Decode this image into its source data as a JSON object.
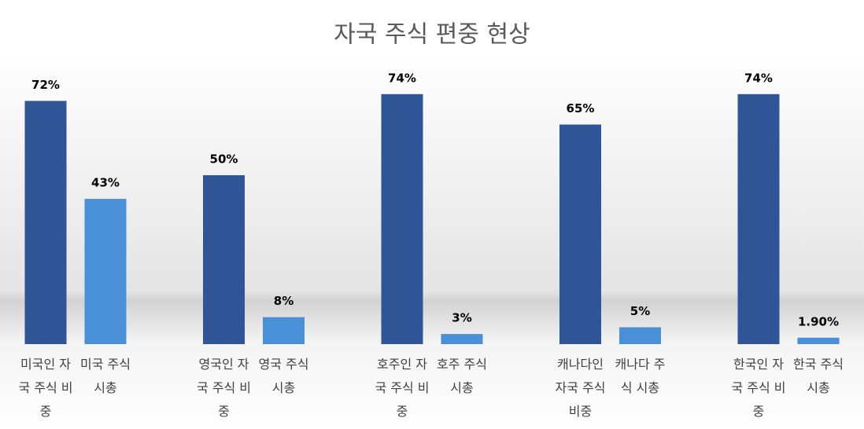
{
  "chart_data": {
    "type": "bar",
    "title": "자국 주식 편중 현상",
    "categories": [
      "미국인 자국 주식 비중",
      "미국 주식 시총",
      "영국인 자국 주식 비중",
      "영국 주식 시총",
      "호주인 자국 주식 비중",
      "호주 주식 시총",
      "캐나다인 자국 주식 비중",
      "캐나다 주식 시총",
      "한국인 자국 주식 비중",
      "한국 주식 시총"
    ],
    "values": [
      72,
      43,
      50,
      8,
      74,
      3,
      65,
      5,
      74,
      1.9
    ],
    "value_labels": [
      "72%",
      "43%",
      "50%",
      "8%",
      "74%",
      "3%",
      "65%",
      "5%",
      "74%",
      "1.90%"
    ],
    "colors": [
      "#2f5597",
      "#4a90d9",
      "#2f5597",
      "#4a90d9",
      "#2f5597",
      "#4a90d9",
      "#2f5597",
      "#4a90d9",
      "#2f5597",
      "#4a90d9"
    ],
    "ylim": [
      0,
      80
    ]
  }
}
